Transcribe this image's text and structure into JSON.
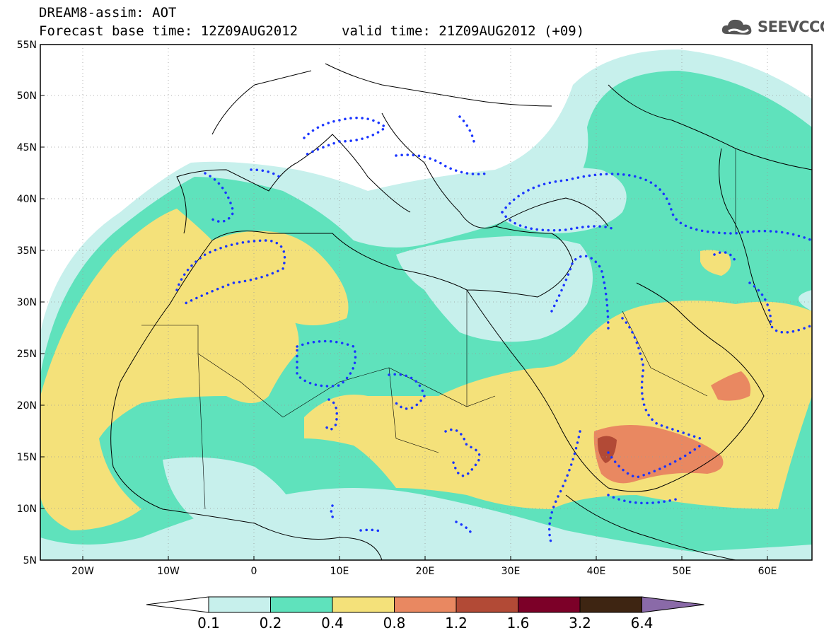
{
  "header": {
    "title": "DREAM8-assim: AOT",
    "base_time": "Forecast base time: 12Z09AUG2012",
    "valid_time": "valid time: 21Z09AUG2012 (+09)"
  },
  "logo": {
    "text": "SEEVCCC",
    "icon": "cloud-icon"
  },
  "map": {
    "lon_range": [
      -25,
      65
    ],
    "lat_range": [
      5,
      55
    ],
    "lat_ticks": [
      "5N",
      "10N",
      "15N",
      "20N",
      "25N",
      "30N",
      "35N",
      "40N",
      "45N",
      "50N",
      "55N"
    ],
    "lon_ticks": [
      "20W",
      "10W",
      "0",
      "10E",
      "20E",
      "30E",
      "40E",
      "50E",
      "60E"
    ],
    "grid": true,
    "contour_line_color": "#1a35ff"
  },
  "colorbar": {
    "labels": [
      "0.1",
      "0.2",
      "0.4",
      "0.8",
      "1.2",
      "1.6",
      "3.2",
      "6.4"
    ],
    "colors": [
      "#ffffff",
      "#c7f0ec",
      "#5fe2bc",
      "#f4e17a",
      "#e98861",
      "#b24a36",
      "#7c0028",
      "#3e2512",
      "#8a6aa8"
    ]
  }
}
